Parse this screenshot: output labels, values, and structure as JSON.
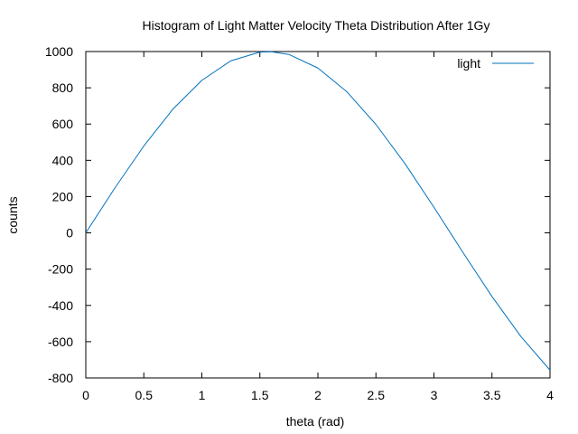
{
  "chart_data": {
    "type": "line",
    "title": "Histogram of Light Matter Velocity Theta Distribution After 1Gy",
    "xlabel": "theta (rad)",
    "ylabel": "counts",
    "xlim": [
      0,
      4
    ],
    "ylim": [
      -800,
      1000
    ],
    "xticks": [
      0,
      0.5,
      1,
      1.5,
      2,
      2.5,
      3,
      3.5,
      4
    ],
    "xtick_labels": [
      "0",
      "0.5",
      "1",
      "1.5",
      "2",
      "2.5",
      "3",
      "3.5",
      "4"
    ],
    "yticks": [
      -800,
      -600,
      -400,
      -200,
      0,
      200,
      400,
      600,
      800,
      1000
    ],
    "ytick_labels": [
      "-800",
      "-600",
      "-400",
      "-200",
      "0",
      "200",
      "400",
      "600",
      "800",
      "1000"
    ],
    "grid": false,
    "legend": "top-right",
    "series": [
      {
        "name": "light",
        "color": "#0072bd",
        "x": [
          0,
          0.25,
          0.5,
          0.75,
          1.0,
          1.25,
          1.5,
          1.6,
          1.75,
          2.0,
          2.25,
          2.5,
          2.75,
          3.0,
          3.25,
          3.5,
          3.75,
          4.0
        ],
        "y": [
          0,
          247,
          479,
          682,
          841,
          949,
          997,
          999,
          984,
          909,
          778,
          598,
          382,
          141,
          -108,
          -351,
          -572,
          -757
        ]
      }
    ]
  }
}
